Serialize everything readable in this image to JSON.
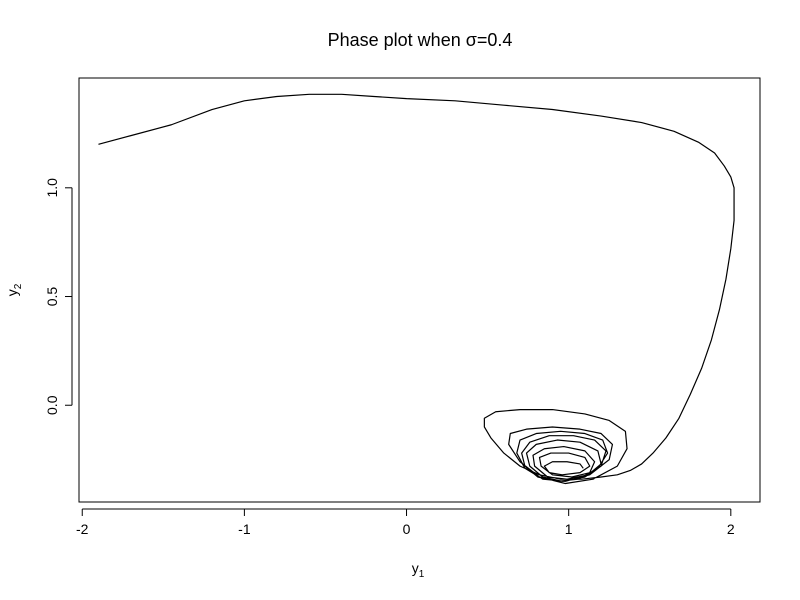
{
  "chart_data": {
    "type": "line",
    "title_prefix": "Phase plot when ",
    "title_symbol": "σ",
    "title_suffix": "=0.4",
    "xlabel": "y",
    "xlabel_sub": "1",
    "ylabel": "y",
    "ylabel_sub": "2",
    "xlim": [
      -2.02,
      2.18
    ],
    "ylim": [
      -0.445,
      1.505
    ],
    "x_ticks": [
      -2,
      -1,
      0,
      1,
      2
    ],
    "x_tick_labels": [
      "-2",
      "-1",
      "0",
      "1",
      "2"
    ],
    "y_ticks": [
      0.0,
      0.5,
      1.0
    ],
    "y_tick_labels": [
      "0.0",
      "0.5",
      "1.0"
    ],
    "grid": false,
    "line_color": "#000000",
    "series": [
      {
        "x": [
          -1.9,
          -1.7,
          -1.45,
          -1.2,
          -1.0,
          -0.8,
          -0.6,
          -0.4,
          -0.2,
          0.0,
          0.3,
          0.6,
          0.9,
          1.2,
          1.45,
          1.65,
          1.8,
          1.9,
          1.96,
          2.0,
          2.02,
          2.02,
          2.0,
          1.97,
          1.93,
          1.88,
          1.82,
          1.75,
          1.68,
          1.6,
          1.52,
          1.45,
          1.38,
          1.3,
          1.2,
          1.08,
          0.95,
          0.82,
          0.7,
          0.6,
          0.52,
          0.48,
          0.48,
          0.55,
          0.7,
          0.9,
          1.1,
          1.25,
          1.35,
          1.36,
          1.3,
          1.15,
          0.98,
          0.82,
          0.7,
          0.63,
          0.64,
          0.74,
          0.9,
          1.07,
          1.2,
          1.27,
          1.25,
          1.13,
          0.98,
          0.84,
          0.73,
          0.68,
          0.7,
          0.8,
          0.95,
          1.1,
          1.21,
          1.24,
          1.18,
          1.06,
          0.93,
          0.81,
          0.73,
          0.71,
          0.76,
          0.88,
          1.03,
          1.16,
          1.23,
          1.2,
          1.1,
          0.96,
          0.84,
          0.76,
          0.74,
          0.8,
          0.93,
          1.07,
          1.18,
          1.2,
          1.12,
          0.99,
          0.87,
          0.79,
          0.78,
          0.85,
          0.97,
          1.1,
          1.16,
          1.13,
          1.02,
          0.9,
          0.83,
          0.82,
          0.89,
          1.0,
          1.1,
          1.13,
          1.07,
          0.96,
          0.88,
          0.85,
          0.9,
          0.99,
          1.07,
          1.09
        ],
        "y": [
          1.2,
          1.24,
          1.29,
          1.36,
          1.4,
          1.42,
          1.43,
          1.43,
          1.42,
          1.41,
          1.4,
          1.38,
          1.36,
          1.33,
          1.3,
          1.26,
          1.21,
          1.16,
          1.1,
          1.05,
          1.0,
          0.85,
          0.72,
          0.58,
          0.44,
          0.3,
          0.17,
          0.05,
          -0.06,
          -0.15,
          -0.22,
          -0.27,
          -0.3,
          -0.32,
          -0.33,
          -0.34,
          -0.34,
          -0.32,
          -0.28,
          -0.22,
          -0.15,
          -0.1,
          -0.06,
          -0.03,
          -0.02,
          -0.02,
          -0.04,
          -0.07,
          -0.12,
          -0.2,
          -0.28,
          -0.34,
          -0.36,
          -0.33,
          -0.26,
          -0.18,
          -0.13,
          -0.11,
          -0.1,
          -0.11,
          -0.13,
          -0.18,
          -0.25,
          -0.32,
          -0.35,
          -0.34,
          -0.29,
          -0.22,
          -0.16,
          -0.13,
          -0.12,
          -0.13,
          -0.16,
          -0.22,
          -0.29,
          -0.34,
          -0.35,
          -0.33,
          -0.28,
          -0.22,
          -0.17,
          -0.14,
          -0.14,
          -0.16,
          -0.21,
          -0.28,
          -0.33,
          -0.35,
          -0.33,
          -0.28,
          -0.22,
          -0.18,
          -0.16,
          -0.17,
          -0.21,
          -0.27,
          -0.32,
          -0.34,
          -0.33,
          -0.28,
          -0.23,
          -0.2,
          -0.19,
          -0.21,
          -0.26,
          -0.31,
          -0.33,
          -0.32,
          -0.28,
          -0.24,
          -0.22,
          -0.22,
          -0.24,
          -0.28,
          -0.31,
          -0.32,
          -0.31,
          -0.28,
          -0.26,
          -0.26,
          -0.27,
          -0.29
        ]
      }
    ]
  }
}
